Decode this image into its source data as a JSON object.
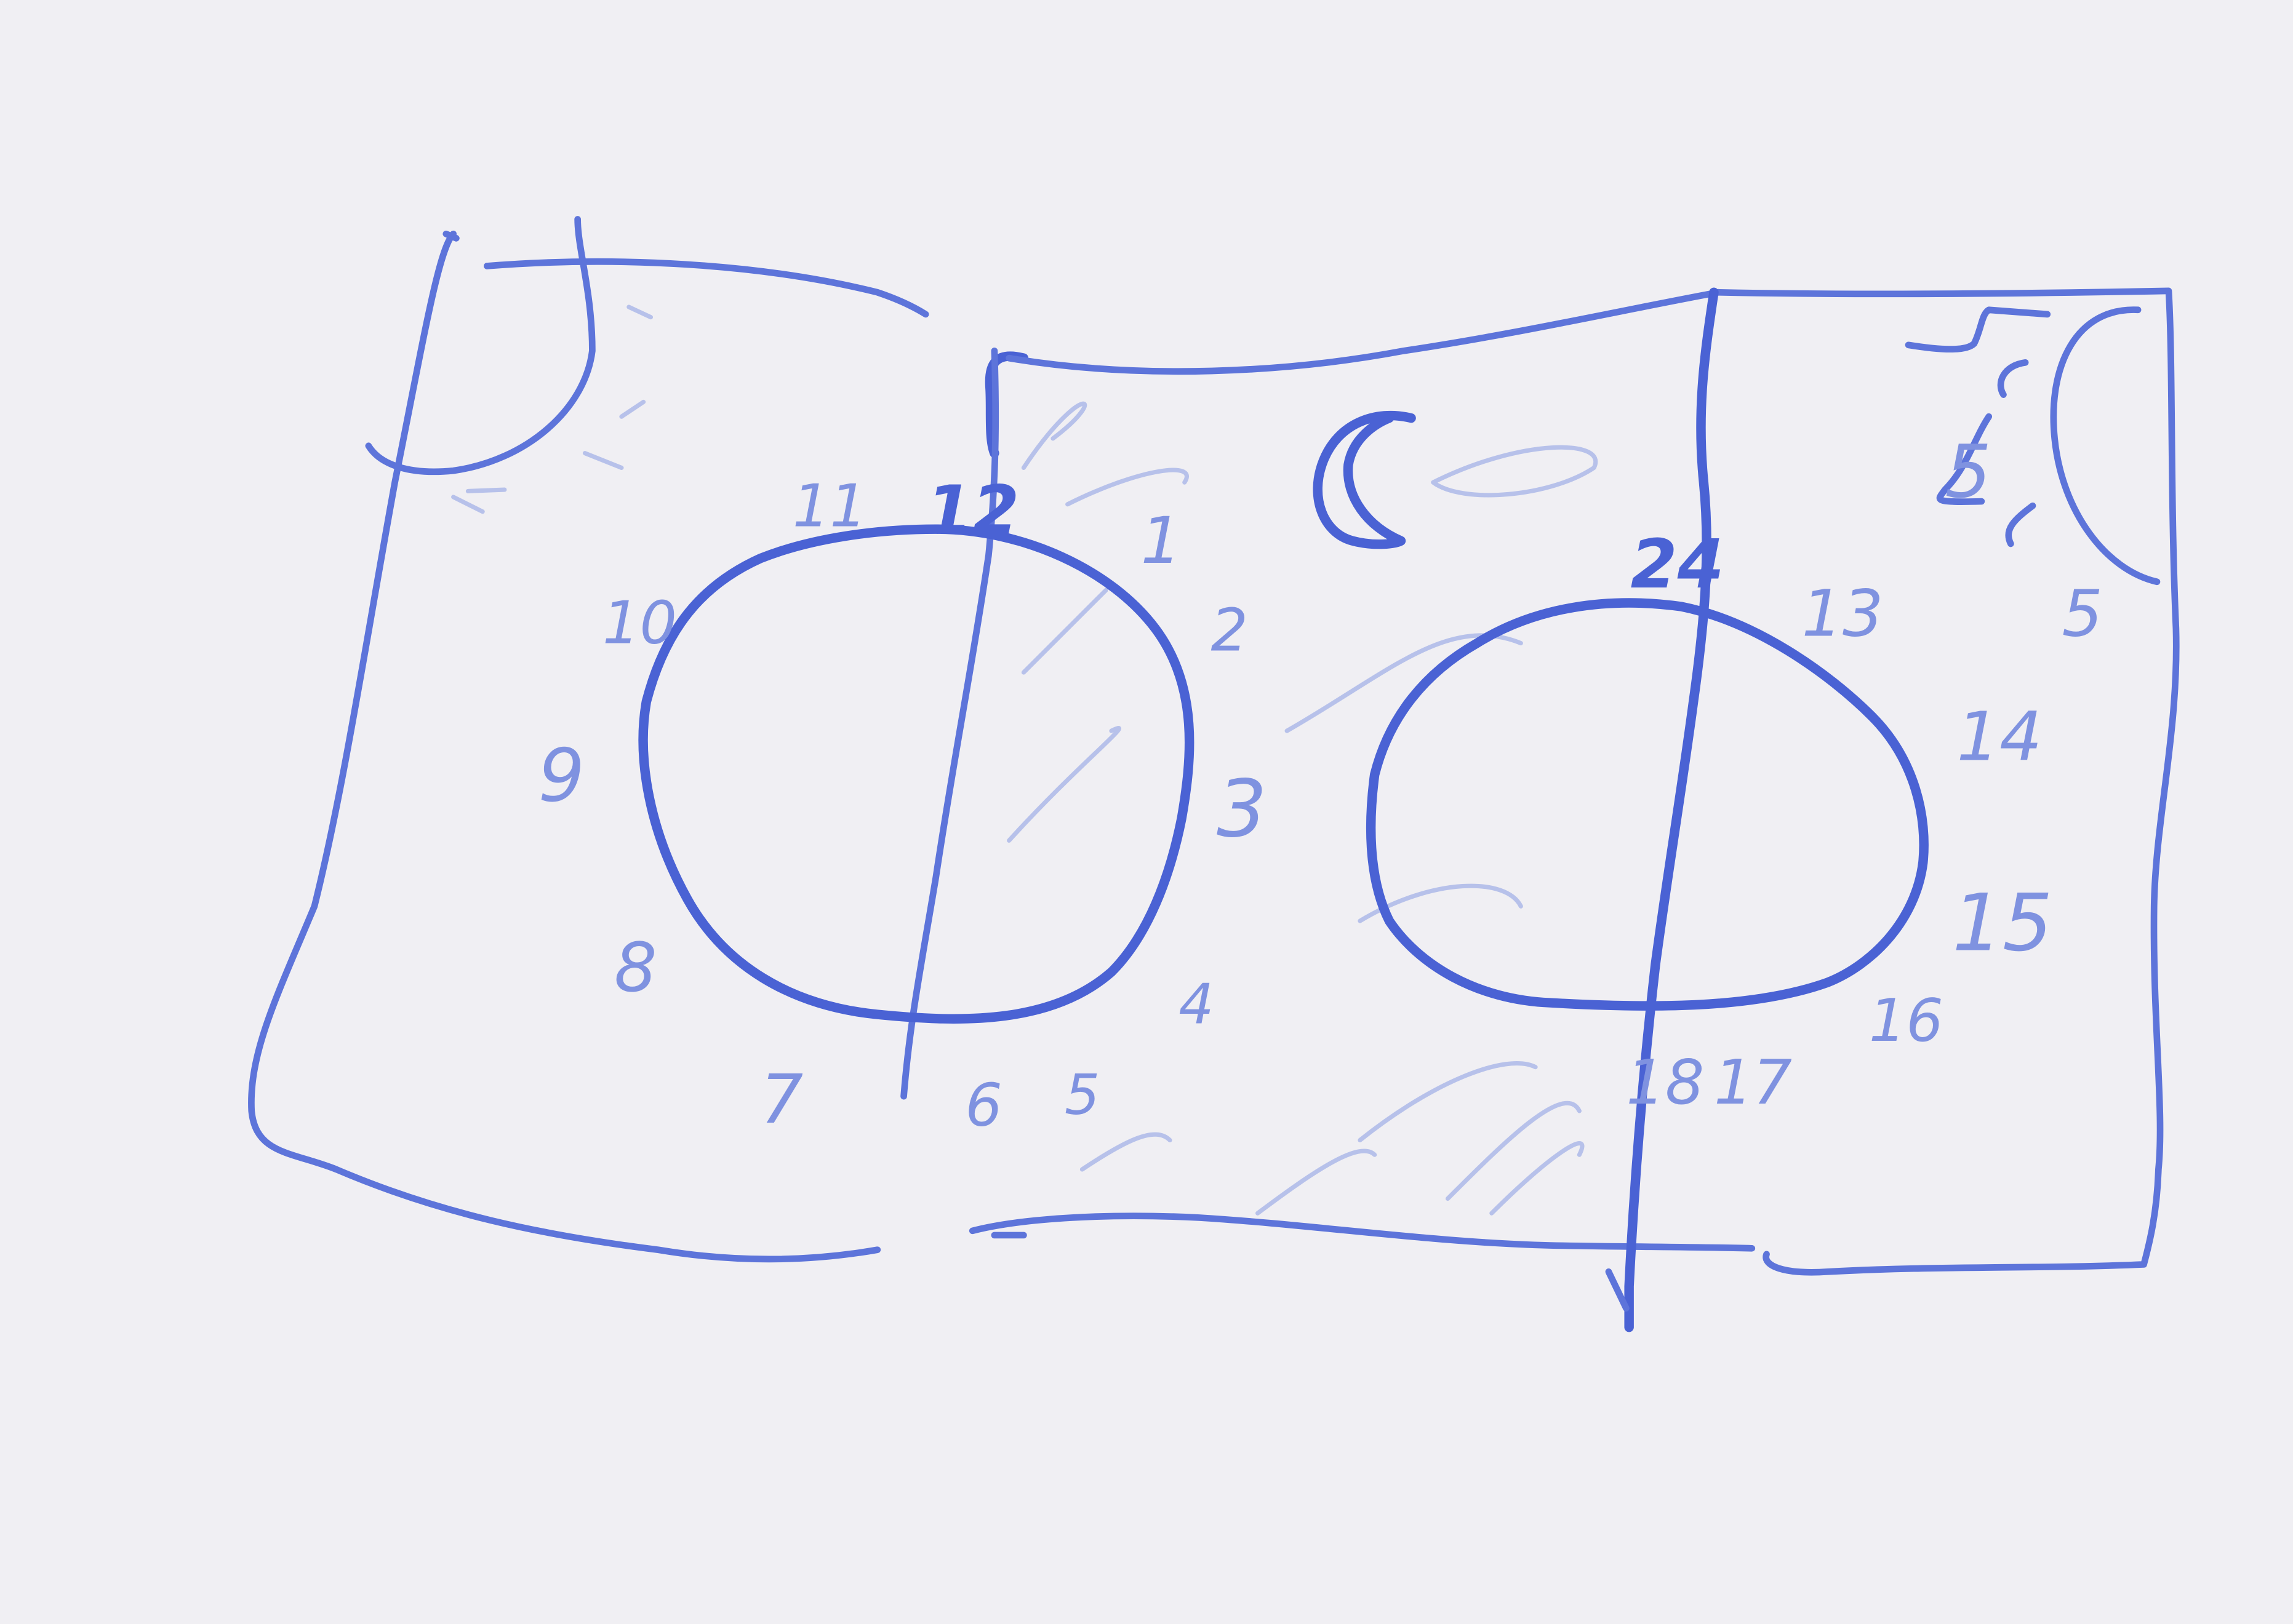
{
  "diagram": {
    "ink_color": "#4a62d4",
    "background_color": "#f0eff3",
    "left_dial": {
      "numbers": [
        "12",
        "1",
        "2",
        "3",
        "4",
        "5",
        "6",
        "7",
        "8",
        "9",
        "10",
        "11"
      ]
    },
    "right_dial": {
      "numbers": [
        "24",
        "13",
        "14",
        "15",
        "16",
        "17",
        "18"
      ]
    },
    "symbols": {
      "top_left": "sun-icon",
      "center": "moon-icon",
      "top_right": "sun-icon"
    }
  }
}
